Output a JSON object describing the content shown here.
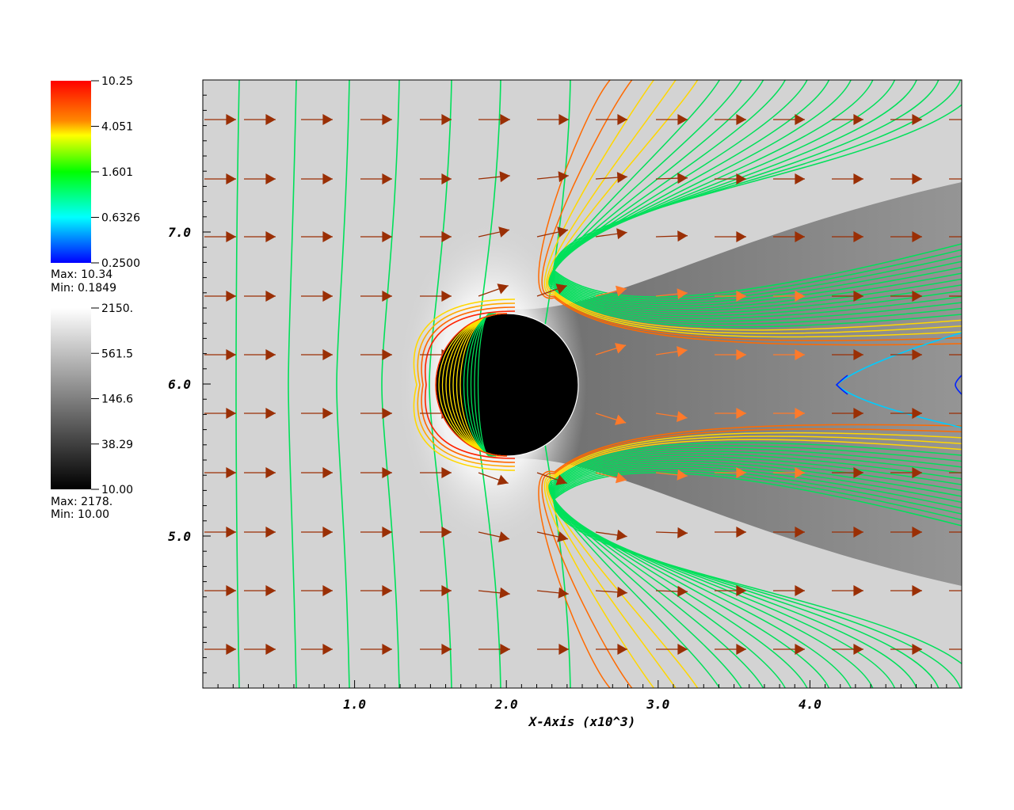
{
  "chart_data": {
    "type": "pseudocolor_contour_vector",
    "xlabel": "X-Axis (x10^3)",
    "x_ticks": [
      "1.0",
      "2.0",
      "3.0",
      "4.0"
    ],
    "x_tick_values": [
      1.0,
      2.0,
      3.0,
      4.0
    ],
    "y_ticks": [
      "5.0",
      "6.0",
      "7.0"
    ],
    "y_tick_values": [
      5.0,
      6.0,
      7.0
    ],
    "xlim": [
      0.0,
      5.0
    ],
    "ylim": [
      4.0,
      8.0
    ],
    "obstacle": {
      "shape": "circle",
      "center_x": 2.0,
      "center_y": 6.0,
      "radius": 0.47,
      "color": "#000000"
    },
    "contour_legend": {
      "variable_range_labels": [
        "10.25",
        "4.051",
        "1.601",
        "0.6326",
        "0.2500"
      ],
      "max": "Max:  10.34",
      "min": "Min:  0.1849",
      "colormap": [
        "#ff0000",
        "#ffff00",
        "#00ff00",
        "#00ffff",
        "#0000ff"
      ],
      "scale": "log"
    },
    "pseudocolor_legend": {
      "variable_range_labels": [
        "2150.",
        "561.5",
        "146.6",
        "38.29",
        "10.00"
      ],
      "max": "Max:  2178.",
      "min": "Min:  10.00",
      "colormap": [
        "#ffffff",
        "#000000"
      ],
      "scale": "log"
    },
    "vector_color": "#9a2f05",
    "vector_rows_y": [
      7.75,
      7.36,
      6.98,
      6.59,
      6.2,
      5.8,
      5.41,
      5.02,
      4.64,
      4.25
    ],
    "vector_cols_x": [
      0.0,
      0.39,
      0.78,
      1.17,
      1.55,
      1.94,
      2.33,
      2.72,
      3.11,
      3.5,
      3.89,
      4.28,
      4.67,
      5.0
    ],
    "contour_lines": {
      "color_scheme": "by_value",
      "upstream_green_lines_x": [
        0.22,
        0.6,
        0.95,
        1.28,
        1.6
      ],
      "wake_lines": 20,
      "blue_contour_x": 4.2
    }
  }
}
